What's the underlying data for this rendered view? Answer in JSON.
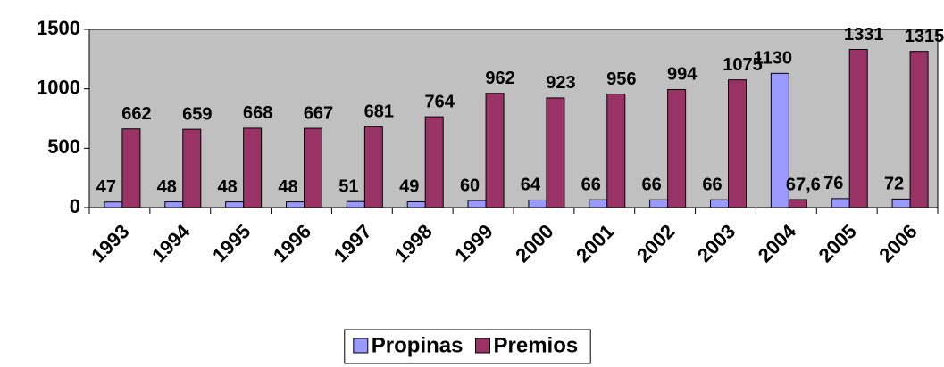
{
  "chart_data": {
    "type": "bar",
    "categories": [
      "1993",
      "1994",
      "1995",
      "1996",
      "1997",
      "1998",
      "1999",
      "2000",
      "2001",
      "2002",
      "2003",
      "2004",
      "2005",
      "2006"
    ],
    "series": [
      {
        "name": "Propinas",
        "color": "#9999ff",
        "values": [
          47,
          48,
          48,
          48,
          51,
          49,
          60,
          64,
          66,
          66,
          66,
          1130,
          76,
          72
        ]
      },
      {
        "name": "Premios",
        "color": "#993366",
        "values": [
          662,
          659,
          668,
          667,
          681,
          764,
          962,
          923,
          956,
          994,
          1075,
          67.6,
          1331,
          1315
        ],
        "value_labels": [
          "662",
          "659",
          "668",
          "667",
          "681",
          "764",
          "962",
          "923",
          "956",
          "994",
          "1075",
          "67,6",
          "1331",
          "1315"
        ]
      }
    ],
    "ylim": [
      0,
      1500
    ],
    "yticks": [
      0,
      500,
      1000,
      1500
    ],
    "plot_background": "#c0c0c0",
    "legend": "bottom"
  }
}
